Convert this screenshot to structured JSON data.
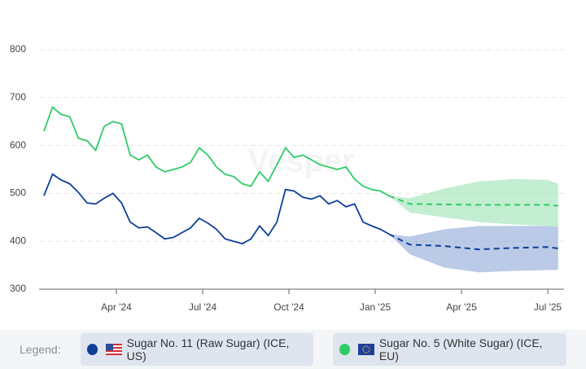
{
  "chart_data": {
    "type": "line",
    "watermark": "Vesper",
    "ylim": [
      300,
      800
    ],
    "yticks": [
      300,
      400,
      500,
      600,
      700,
      800
    ],
    "grid": true,
    "xlim": [
      2024.026,
      2025.547
    ],
    "xticks": [
      {
        "value": 2024.25,
        "label": "Apr '24"
      },
      {
        "value": 2024.5,
        "label": "Jul '24"
      },
      {
        "value": 2024.75,
        "label": "Oct '24"
      },
      {
        "value": 2025.0,
        "label": "Jan '25"
      },
      {
        "value": 2025.25,
        "label": "Apr '25"
      },
      {
        "value": 2025.5,
        "label": "Jul '25"
      }
    ],
    "x": [
      2024.04,
      2024.065,
      2024.09,
      2024.115,
      2024.14,
      2024.165,
      2024.19,
      2024.215,
      2024.24,
      2024.265,
      2024.29,
      2024.315,
      2024.34,
      2024.365,
      2024.39,
      2024.415,
      2024.44,
      2024.465,
      2024.49,
      2024.515,
      2024.54,
      2024.565,
      2024.59,
      2024.615,
      2024.64,
      2024.665,
      2024.69,
      2024.715,
      2024.74,
      2024.765,
      2024.79,
      2024.815,
      2024.84,
      2024.865,
      2024.89,
      2024.915,
      2024.94,
      2024.965,
      2024.99,
      2025.015,
      2025.04
    ],
    "forecast_x": [
      2025.04,
      2025.1,
      2025.2,
      2025.3,
      2025.4,
      2025.5,
      2025.53
    ],
    "legend_label": "Legend:",
    "series": [
      {
        "name": "Sugar No. 11 (Raw Sugar) (ICE, US)",
        "color": "#0d3f9a",
        "band_color": "#8ea6d6",
        "values": [
          495,
          540,
          528,
          520,
          502,
          480,
          478,
          490,
          500,
          480,
          440,
          428,
          430,
          418,
          405,
          408,
          418,
          428,
          448,
          438,
          425,
          405,
          400,
          395,
          405,
          432,
          412,
          440,
          508,
          505,
          492,
          488,
          495,
          478,
          485,
          472,
          478,
          440,
          432,
          425,
          415
        ],
        "forecast": [
          415,
          393,
          390,
          383,
          386,
          388,
          385
        ],
        "forecast_lower": [
          415,
          373,
          345,
          335,
          338,
          340,
          340
        ],
        "forecast_upper": [
          415,
          410,
          425,
          432,
          432,
          432,
          430
        ]
      },
      {
        "name": "Sugar No. 5 (White Sugar) (ICE, EU)",
        "color": "#2fcc66",
        "band_color": "#9be3b2",
        "values": [
          630,
          680,
          665,
          660,
          615,
          610,
          590,
          640,
          650,
          645,
          580,
          570,
          580,
          555,
          545,
          550,
          555,
          565,
          595,
          580,
          555,
          540,
          535,
          520,
          515,
          545,
          525,
          560,
          595,
          575,
          580,
          570,
          560,
          555,
          550,
          555,
          530,
          515,
          508,
          505,
          495
        ],
        "forecast": [
          495,
          478,
          477,
          476,
          476,
          476,
          474
        ],
        "forecast_lower": [
          495,
          460,
          450,
          440,
          435,
          432,
          430
        ],
        "forecast_upper": [
          495,
          490,
          510,
          525,
          530,
          528,
          520
        ]
      }
    ]
  }
}
